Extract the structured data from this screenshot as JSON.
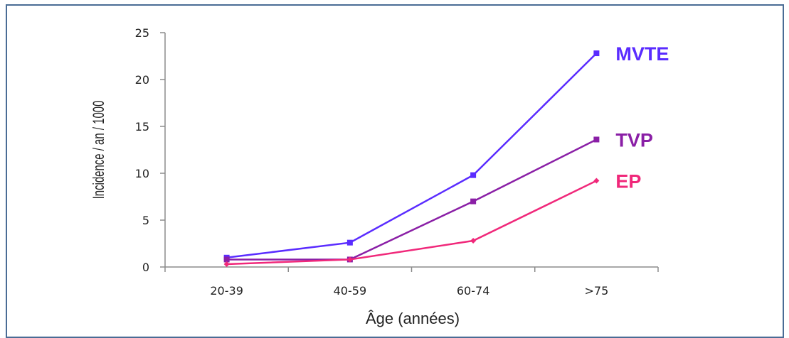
{
  "chart_data": {
    "type": "line",
    "categories": [
      "20-39",
      "40-59",
      "60-74",
      ">75"
    ],
    "xlabel": "Âge (années)",
    "ylabel": "Incidence / an / 1000",
    "ylim": [
      0,
      25
    ],
    "yticks": [
      "0",
      "5",
      "10",
      "15",
      "20",
      "25"
    ],
    "grid": false,
    "series": [
      {
        "name": "MVTE",
        "color": "#5a2cff",
        "marker": "square",
        "values": [
          1.0,
          2.6,
          9.8,
          22.8
        ]
      },
      {
        "name": "TVP",
        "color": "#8a1fa6",
        "marker": "square",
        "values": [
          0.8,
          0.8,
          7.0,
          13.6
        ]
      },
      {
        "name": "EP",
        "color": "#f0287a",
        "marker": "diamond",
        "values": [
          0.3,
          0.8,
          2.8,
          9.2
        ]
      }
    ]
  }
}
